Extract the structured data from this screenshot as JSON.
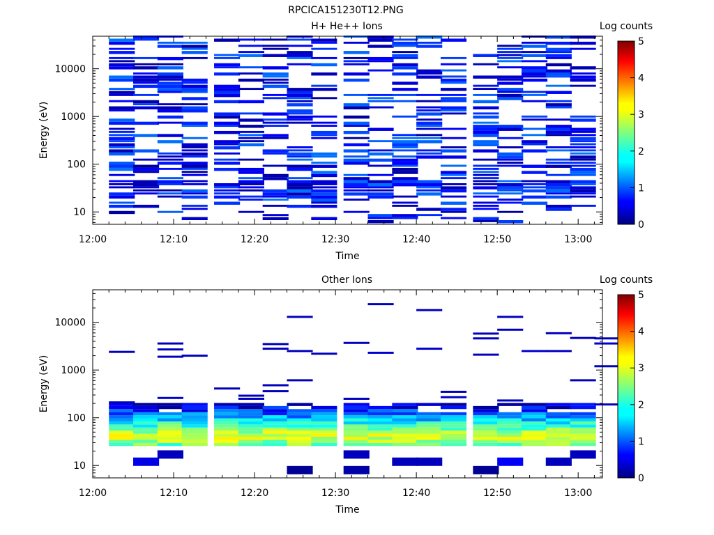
{
  "figure_title": "RPCICA151230T12.PNG",
  "chart_data": [
    {
      "type": "heatmap",
      "title": "H+ He++ Ions",
      "xlabel": "Time",
      "ylabel": "Energy (eV)",
      "colorbar_label": "Log counts",
      "x_ticks": [
        "12:00",
        "12:10",
        "12:20",
        "12:30",
        "12:40",
        "12:50",
        "13:00"
      ],
      "y_ticks": [
        "10",
        "100",
        "1000",
        "10000"
      ],
      "colorbar_ticks": [
        "0",
        "1",
        "2",
        "3",
        "4",
        "5"
      ],
      "xlim": [
        "12:00",
        "13:03"
      ],
      "ylim": [
        5.5,
        48000
      ],
      "log_y": true,
      "colorbar_range": [
        0,
        5
      ],
      "time_bin_starts": [
        "12:02",
        "12:05",
        "12:08",
        "12:11",
        "12:15",
        "12:18",
        "12:21",
        "12:24",
        "12:27",
        "12:31",
        "12:34",
        "12:37",
        "12:40",
        "12:43",
        "12:47",
        "12:50",
        "12:53",
        "12:56",
        "12:59"
      ],
      "time_bin_minutes": 3.2,
      "max_energy": 48000,
      "min_energy": 5.8,
      "value_range": [
        0.15,
        1.2
      ],
      "fill_fraction": 0.52
    },
    {
      "type": "heatmap",
      "title": "Other Ions",
      "xlabel": "Time",
      "ylabel": "Energy (eV)",
      "colorbar_label": "Log counts",
      "x_ticks": [
        "12:00",
        "12:10",
        "12:20",
        "12:30",
        "12:40",
        "12:50",
        "13:00"
      ],
      "y_ticks": [
        "10",
        "100",
        "1000",
        "10000"
      ],
      "colorbar_ticks": [
        "0",
        "1",
        "2",
        "3",
        "4",
        "5"
      ],
      "xlim": [
        "12:00",
        "13:03"
      ],
      "ylim": [
        5.5,
        48000
      ],
      "log_y": true,
      "colorbar_range": [
        0,
        5
      ],
      "time_bin_starts": [
        "12:02",
        "12:05",
        "12:08",
        "12:11",
        "12:15",
        "12:18",
        "12:21",
        "12:24",
        "12:27",
        "12:31",
        "12:34",
        "12:37",
        "12:40",
        "12:43",
        "12:47",
        "12:50",
        "12:53",
        "12:56",
        "12:59"
      ],
      "time_bin_minutes": 3.2,
      "dense_band_energy": [
        25,
        190
      ],
      "dense_band_peak_energy": 38,
      "dense_band_peak_value": 3.1,
      "sparse_events": [
        {
          "t": "12:02",
          "e": 2400,
          "v": 0.3
        },
        {
          "t": "12:02",
          "e": 210,
          "v": 0.3
        },
        {
          "t": "12:05",
          "e": 12,
          "v": 0.5
        },
        {
          "t": "12:08",
          "e": 3600,
          "v": 0.3
        },
        {
          "t": "12:08",
          "e": 2700,
          "v": 0.3
        },
        {
          "t": "12:08",
          "e": 1900,
          "v": 0.3
        },
        {
          "t": "12:08",
          "e": 260,
          "v": 0.4
        },
        {
          "t": "12:08",
          "e": 17,
          "v": 0.3
        },
        {
          "t": "12:11",
          "e": 2000,
          "v": 0.3
        },
        {
          "t": "12:15",
          "e": 410,
          "v": 0.3
        },
        {
          "t": "12:18",
          "e": 290,
          "v": 0.3
        },
        {
          "t": "12:18",
          "e": 250,
          "v": 0.3
        },
        {
          "t": "12:21",
          "e": 3500,
          "v": 0.3
        },
        {
          "t": "12:21",
          "e": 2800,
          "v": 0.3
        },
        {
          "t": "12:21",
          "e": 480,
          "v": 0.3
        },
        {
          "t": "12:21",
          "e": 360,
          "v": 0.3
        },
        {
          "t": "12:24",
          "e": 13000,
          "v": 0.3
        },
        {
          "t": "12:24",
          "e": 2500,
          "v": 0.3
        },
        {
          "t": "12:24",
          "e": 610,
          "v": 0.3
        },
        {
          "t": "12:24",
          "e": 8,
          "v": 0.1
        },
        {
          "t": "12:27",
          "e": 2200,
          "v": 0.3
        },
        {
          "t": "12:31",
          "e": 3700,
          "v": 0.3
        },
        {
          "t": "12:31",
          "e": 250,
          "v": 0.3
        },
        {
          "t": "12:31",
          "e": 17,
          "v": 0.3
        },
        {
          "t": "12:31",
          "e": 8,
          "v": 0.2
        },
        {
          "t": "12:34",
          "e": 24000,
          "v": 0.3
        },
        {
          "t": "12:34",
          "e": 2300,
          "v": 0.4
        },
        {
          "t": "12:37",
          "e": 12,
          "v": 0.3
        },
        {
          "t": "12:40",
          "e": 18000,
          "v": 0.3
        },
        {
          "t": "12:40",
          "e": 2800,
          "v": 0.4
        },
        {
          "t": "12:40",
          "e": 12,
          "v": 0.3
        },
        {
          "t": "12:43",
          "e": 350,
          "v": 0.3
        },
        {
          "t": "12:43",
          "e": 270,
          "v": 0.3
        },
        {
          "t": "12:47",
          "e": 5800,
          "v": 0.3
        },
        {
          "t": "12:47",
          "e": 4600,
          "v": 0.3
        },
        {
          "t": "12:47",
          "e": 2100,
          "v": 0.3
        },
        {
          "t": "12:47",
          "e": 8,
          "v": 0.1
        },
        {
          "t": "12:50",
          "e": 13000,
          "v": 0.3
        },
        {
          "t": "12:50",
          "e": 7000,
          "v": 0.3
        },
        {
          "t": "12:50",
          "e": 230,
          "v": 0.3
        },
        {
          "t": "12:50",
          "e": 12,
          "v": 0.6
        },
        {
          "t": "12:53",
          "e": 2500,
          "v": 0.4
        },
        {
          "t": "12:56",
          "e": 5900,
          "v": 0.3
        },
        {
          "t": "12:56",
          "e": 2500,
          "v": 0.3
        },
        {
          "t": "12:56",
          "e": 12,
          "v": 0.3
        },
        {
          "t": "12:59",
          "e": 4700,
          "v": 0.3
        },
        {
          "t": "12:59",
          "e": 610,
          "v": 0.3
        },
        {
          "t": "12:59",
          "e": 17,
          "v": 0.3
        },
        {
          "t": "13:02",
          "e": 4600,
          "v": 0.3
        },
        {
          "t": "13:02",
          "e": 3600,
          "v": 0.4
        },
        {
          "t": "13:02",
          "e": 1200,
          "v": 0.3
        },
        {
          "t": "13:02",
          "e": 190,
          "v": 0.3
        }
      ]
    }
  ]
}
